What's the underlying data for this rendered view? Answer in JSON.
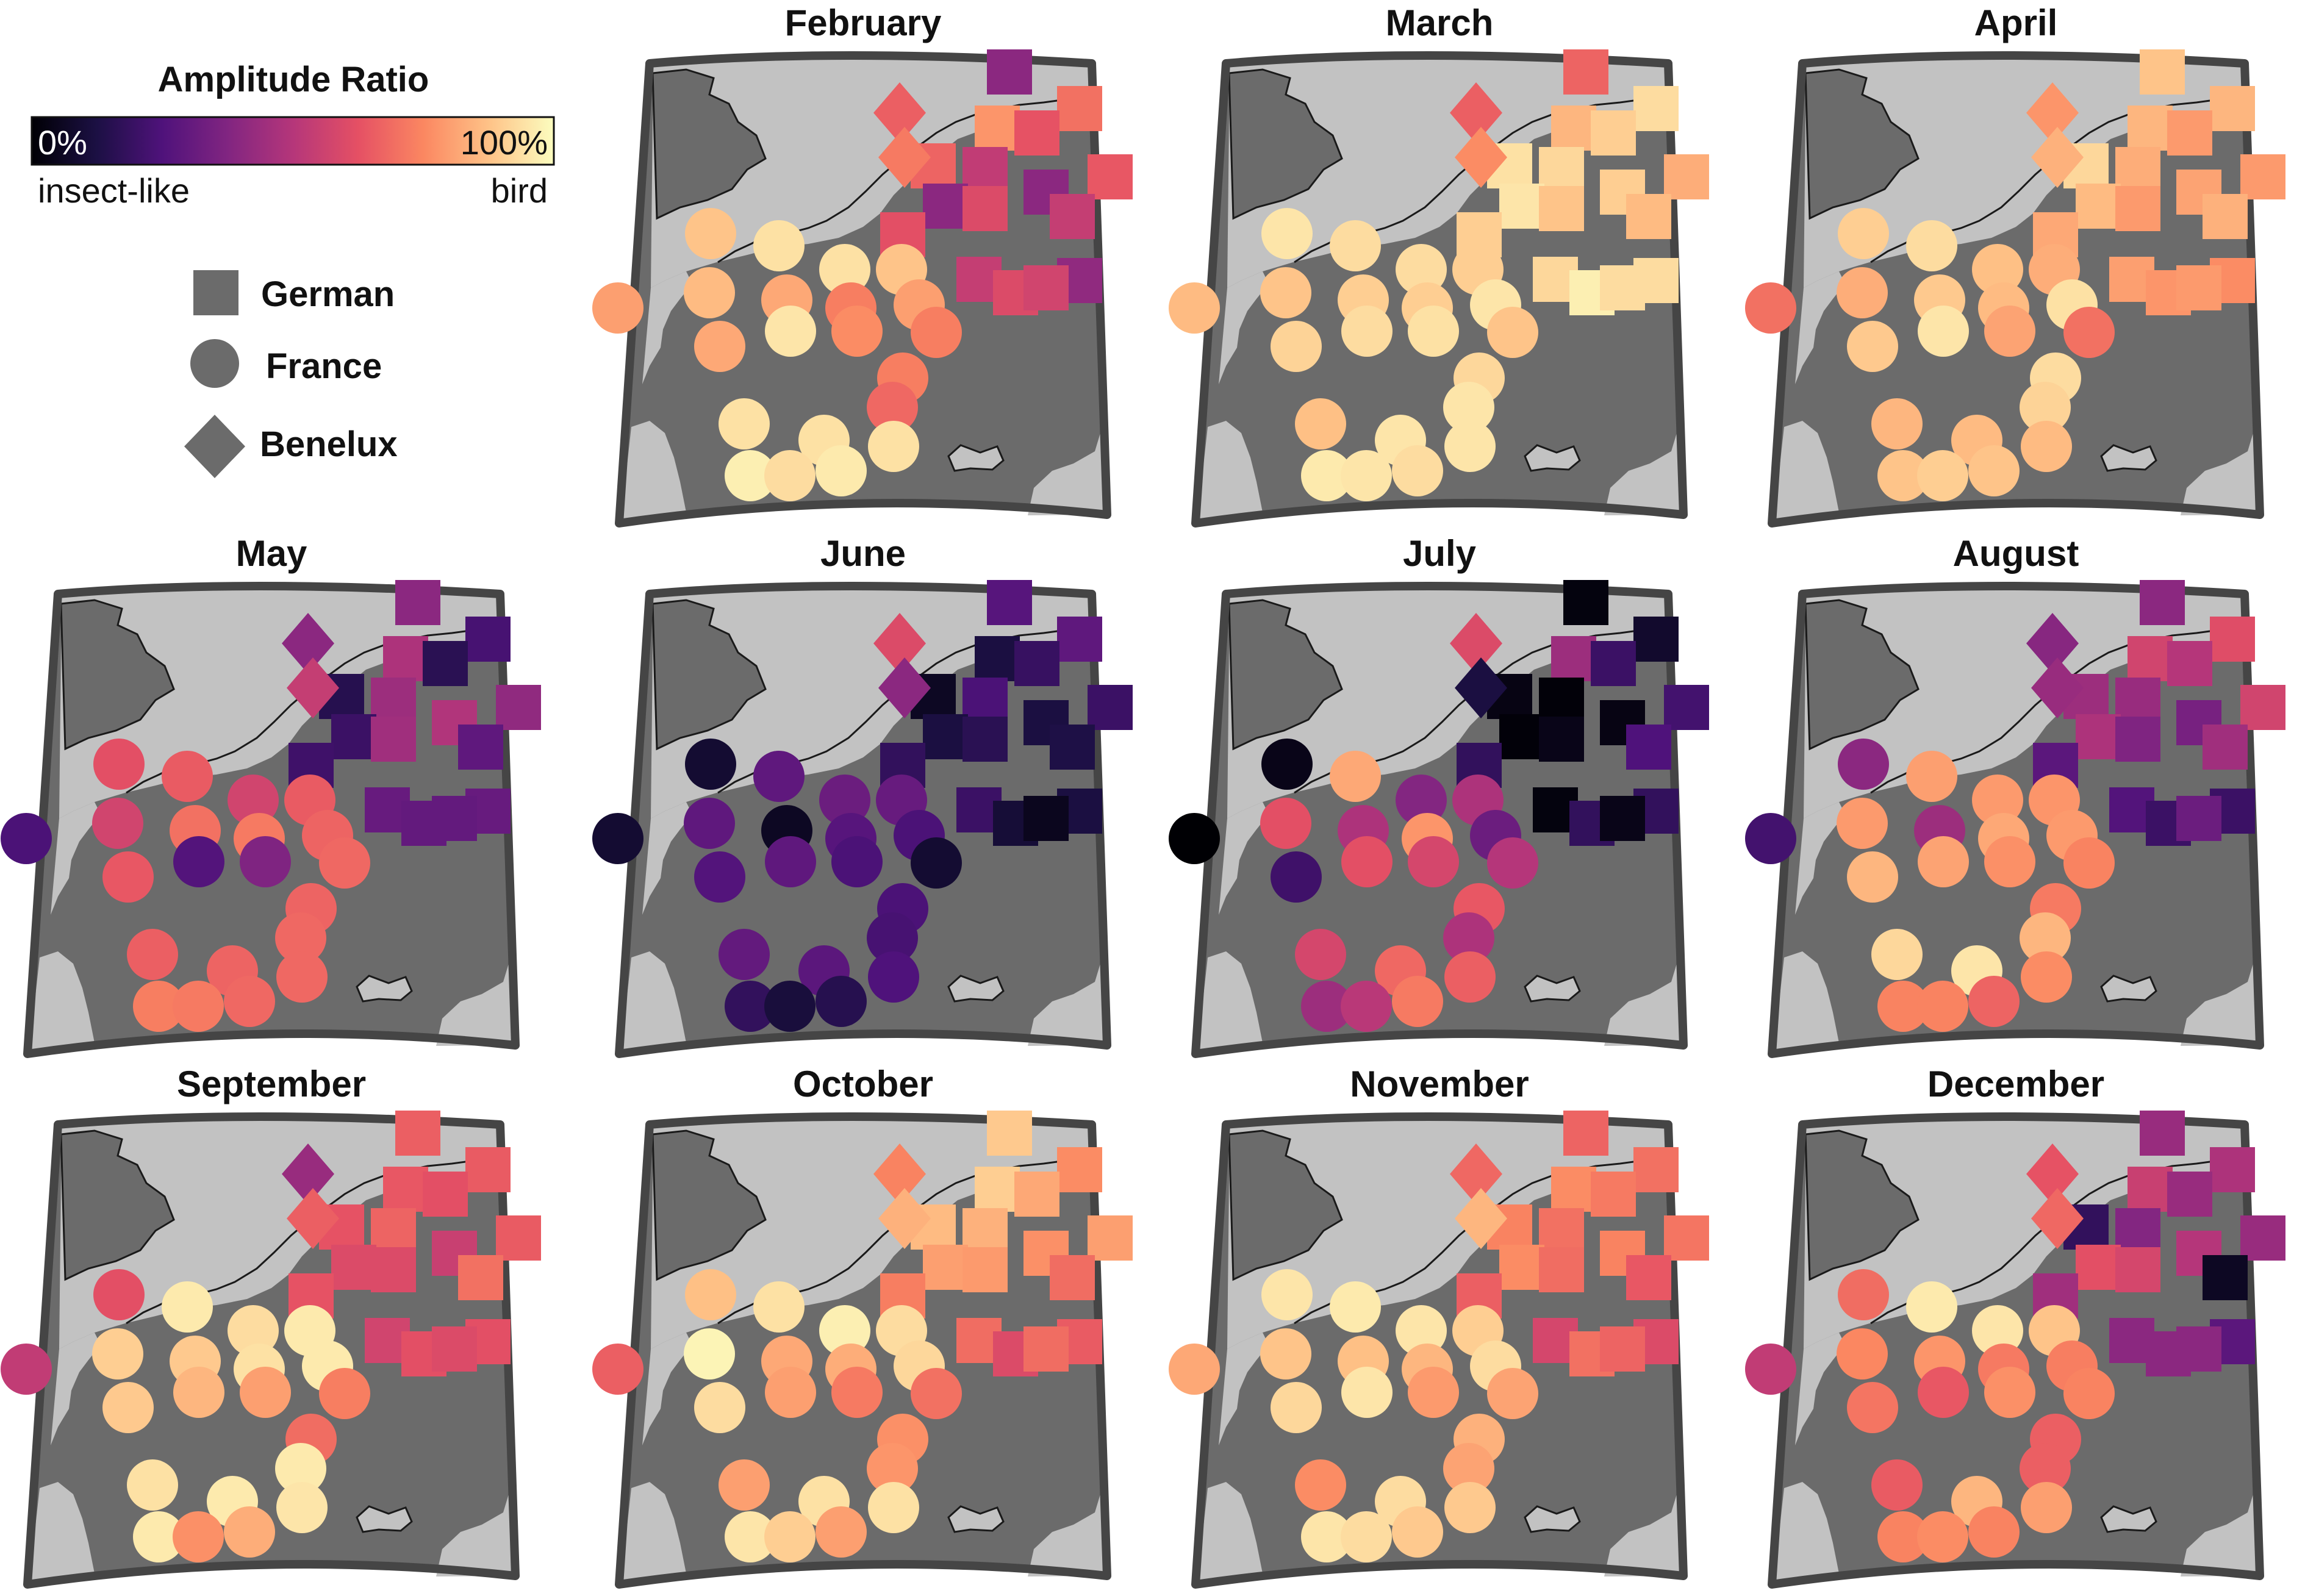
{
  "colorbar": {
    "title": "Amplitude Ratio",
    "min_label": "0%",
    "max_label": "100%",
    "left_caption": "insect-like",
    "right_caption": "bird",
    "colormap": "magma",
    "stops": [
      "#000004",
      "#1c1044",
      "#4f127b",
      "#812581",
      "#b5367a",
      "#e55064",
      "#fb8761",
      "#fec287",
      "#fcfdbf"
    ]
  },
  "legend": {
    "items": [
      {
        "shape": "square",
        "label": "German"
      },
      {
        "shape": "circle",
        "label": "France"
      },
      {
        "shape": "diamond",
        "label": "Benelux"
      }
    ]
  },
  "map_colors": {
    "land": "#6b6b6b",
    "sea": "#c2c2c2",
    "frame": "#454545",
    "coast": "#1a1a1a"
  },
  "chart_data": {
    "type": "scatter",
    "title": "Amplitude Ratio",
    "value_range": [
      0,
      100
    ],
    "value_unit": "%",
    "note": "Map small multiples; each marker is a radar site coloured by its amplitude ratio (0% insect-like, 100% bird). Ratios are estimated from marker colour.",
    "series": [
      {
        "name": "February",
        "german": [
          40,
          70,
          78,
          63,
          67,
          53,
          64,
          40,
          40,
          60,
          54,
          62,
          54,
          41,
          60,
          57
        ],
        "france": [
          80,
          88,
          94,
          94,
          88,
          86,
          82,
          73,
          80,
          82,
          95,
          76,
          73,
          73,
          68,
          94,
          94,
          94,
          97,
          93,
          96
        ],
        "benelux": [
          66,
          72
        ]
      },
      {
        "name": "March",
        "german": [
          67,
          93,
          85,
          90,
          94,
          92,
          83,
          90,
          95,
          88,
          86,
          90,
          92,
          93,
          97,
          93
        ],
        "france": [
          86,
          95,
          93,
          93,
          90,
          88,
          90,
          90,
          95,
          91,
          93,
          94,
          88,
          92,
          95,
          87,
          95,
          95,
          96,
          95,
          93
        ],
        "benelux": [
          66,
          76
        ]
      },
      {
        "name": "April",
        "german": [
          88,
          85,
          85,
          79,
          92,
          83,
          79,
          81,
          86,
          79,
          84,
          82,
          80,
          76,
          78,
          79
        ],
        "france": [
          70,
          90,
          93,
          87,
          83,
          83,
          89,
          86,
          94,
          89,
          95,
          81,
          70,
          93,
          91,
          85,
          86,
          86,
          88,
          90,
          88
        ],
        "benelux": [
          78,
          84
        ]
      },
      {
        "name": "May",
        "german": [
          40,
          23,
          48,
          16,
          15,
          44,
          41,
          49,
          20,
          45,
          29,
          21,
          31,
          31,
          30,
          30
        ],
        "france": [
          24,
          62,
          65,
          57,
          65,
          57,
          70,
          72,
          67,
          64,
          26,
          37,
          68,
          67,
          68,
          66,
          67,
          68,
          73,
          72,
          68
        ],
        "benelux": [
          40,
          54
        ]
      },
      {
        "name": "June",
        "german": [
          27,
          29,
          12,
          19,
          6,
          24,
          20,
          12,
          12,
          16,
          13,
          18,
          20,
          12,
          10,
          5
        ],
        "france": [
          9,
          9,
          29,
          32,
          31,
          29,
          6,
          27,
          24,
          26,
          29,
          24,
          9,
          24,
          23,
          30,
          28,
          25,
          18,
          11,
          15
        ],
        "benelux": [
          60,
          40
        ]
      },
      {
        "name": "July",
        "german": [
          2,
          8,
          44,
          20,
          3,
          1,
          22,
          3,
          1,
          4,
          25,
          18,
          2,
          18,
          18,
          4
        ],
        "france": [
          0,
          4,
          82,
          38,
          48,
          62,
          48,
          78,
          32,
          21,
          62,
          58,
          50,
          64,
          48,
          58,
          68,
          66,
          44,
          51,
          72
        ],
        "benelux": [
          60,
          12
        ]
      },
      {
        "name": "August",
        "german": [
          40,
          61,
          57,
          50,
          44,
          43,
          57,
          35,
          48,
          37,
          45,
          28,
          26,
          20,
          20,
          32
        ],
        "france": [
          22,
          40,
          80,
          79,
          78,
          79,
          44,
          82,
          79,
          85,
          81,
          77,
          74,
          72,
          85,
          92,
          95,
          76,
          74,
          74,
          67
        ],
        "benelux": [
          39,
          43
        ]
      },
      {
        "name": "September",
        "german": [
          66,
          65,
          64,
          62,
          63,
          67,
          65,
          55,
          60,
          60,
          70,
          63,
          57,
          62,
          62,
          60
        ],
        "france": [
          53,
          62,
          96,
          93,
          96,
          90,
          89,
          94,
          96,
          89,
          85,
          80,
          73,
          69,
          96,
          94,
          96,
          95,
          96,
          77,
          83
        ],
        "benelux": [
          43,
          66
        ]
      },
      {
        "name": "October",
        "german": [
          89,
          76,
          90,
          82,
          86,
          84,
          80,
          77,
          80,
          79,
          69,
          73,
          69,
          65,
          60,
          69
        ],
        "france": [
          66,
          87,
          94,
          97,
          93,
          98,
          82,
          83,
          92,
          93,
          80,
          72,
          70,
          77,
          78,
          80,
          94,
          94,
          95,
          90,
          80
        ],
        "benelux": [
          74,
          84
        ]
      },
      {
        "name": "November",
        "german": [
          67,
          70,
          76,
          72,
          74,
          70,
          71,
          74,
          76,
          69,
          64,
          66,
          58,
          60,
          70,
          67
        ],
        "france": [
          82,
          95,
          96,
          95,
          90,
          88,
          87,
          85,
          93,
          92,
          95,
          79,
          81,
          84,
          81,
          76,
          93,
          89,
          95,
          93,
          89
        ],
        "benelux": [
          68,
          85
        ]
      },
      {
        "name": "December",
        "german": [
          43,
          48,
          55,
          43,
          18,
          38,
          43,
          50,
          62,
          58,
          6,
          45,
          40,
          28,
          40,
          40
        ],
        "france": [
          53,
          69,
          96,
          95,
          88,
          75,
          78,
          72,
          73,
          71,
          64,
          77,
          74,
          66,
          66,
          65,
          85,
          80,
          74,
          76,
          74
        ],
        "benelux": [
          63,
          68
        ]
      }
    ]
  }
}
